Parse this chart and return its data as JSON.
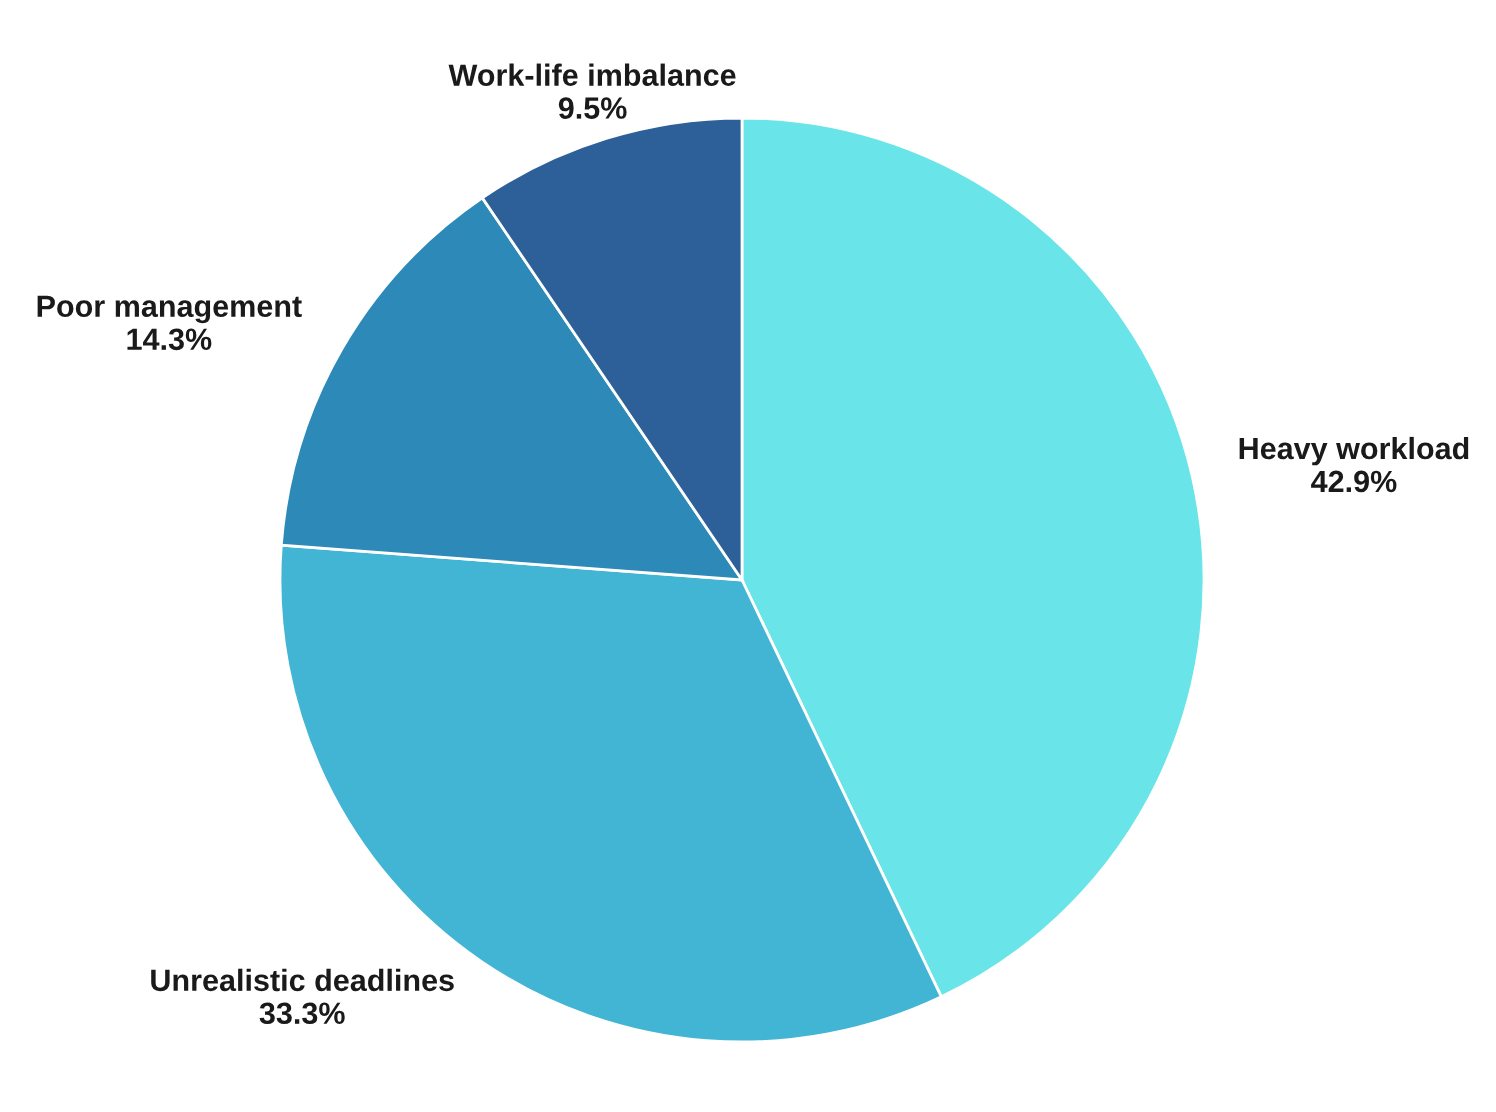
{
  "chart_data": {
    "type": "pie",
    "categories": [
      "Heavy workload",
      "Unrealistic deadlines",
      "Poor management",
      "Work-life imbalance"
    ],
    "values": [
      42.9,
      33.3,
      14.3,
      9.5
    ],
    "value_labels": [
      "42.9%",
      "33.3%",
      "14.3%",
      "9.5%"
    ],
    "colors": [
      "#69e4e8",
      "#42b4d4",
      "#2d8ab8",
      "#2d5f98"
    ]
  }
}
